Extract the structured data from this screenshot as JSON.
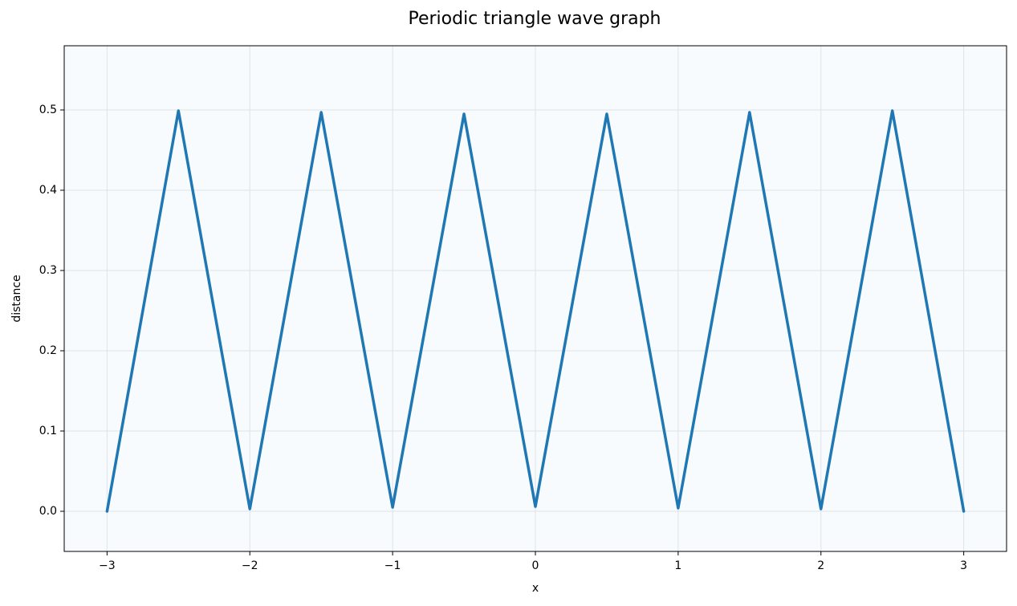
{
  "chart_data": {
    "type": "line",
    "title": "Periodic triangle wave graph",
    "xlabel": "x",
    "ylabel": "distance",
    "x": [
      -3,
      -2.5,
      -2,
      -1.5,
      -1,
      -0.5,
      0,
      0.5,
      1,
      1.5,
      2,
      2.5,
      3
    ],
    "series": [
      {
        "color": "#1f77b4",
        "values": [
          0,
          0.499,
          0.003,
          0.497,
          0.005,
          0.495,
          0.006,
          0.495,
          0.004,
          0.497,
          0.003,
          0.499,
          0
        ]
      }
    ],
    "xlim": [
      -3.3,
      3.3
    ],
    "ylim": [
      -0.05,
      0.58
    ],
    "xticks": [
      {
        "value": -3,
        "label": "−3"
      },
      {
        "value": -2,
        "label": "−2"
      },
      {
        "value": -1,
        "label": "−1"
      },
      0,
      1,
      2,
      3
    ],
    "yticks": [
      {
        "value": 0,
        "label": "0.0"
      },
      0.1,
      0.2,
      0.3,
      0.4,
      0.5
    ],
    "grid": true,
    "background": "#f8fbfd"
  }
}
